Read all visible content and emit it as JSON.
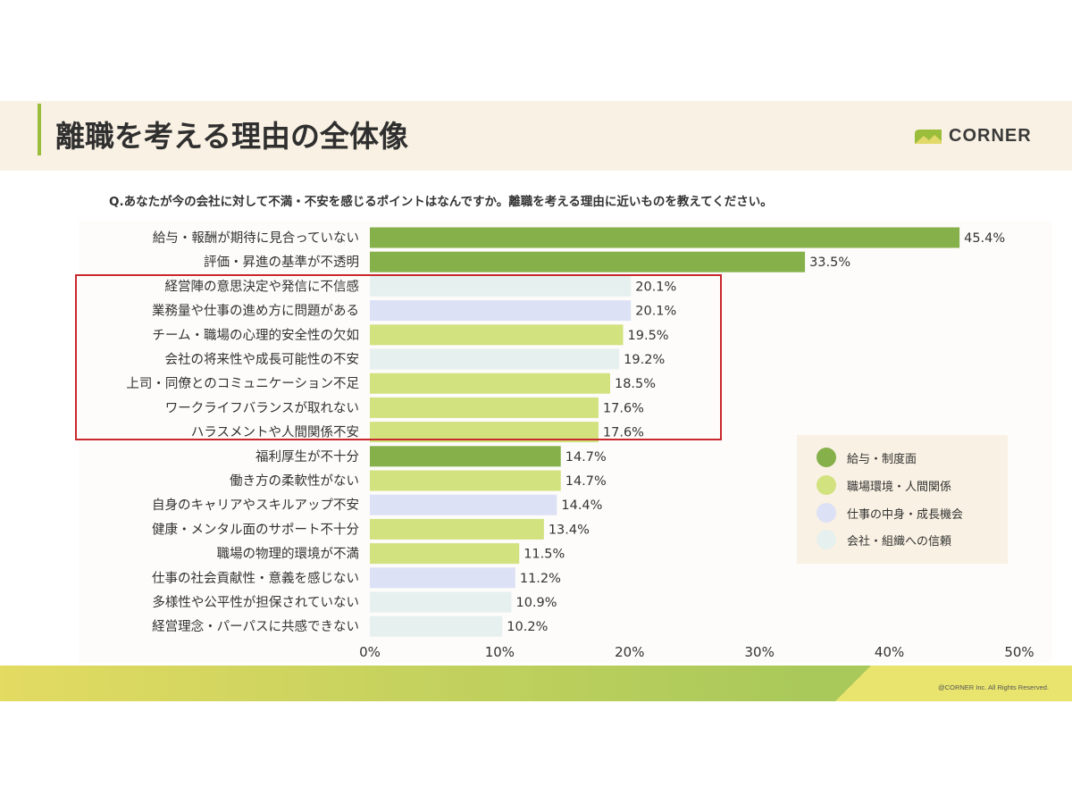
{
  "header": {
    "title": "離職を考える理由の全体像",
    "brand": "CORNER"
  },
  "question": "Q.あなたが今の会社に対して不満・不安を感じるポイントはなんですか。離職を考える理由に近いものを教えてください。",
  "legend": [
    {
      "label": "給与・制度面",
      "color": "#86b04a"
    },
    {
      "label": "職場環境・人間関係",
      "color": "#d2e27f"
    },
    {
      "label": "仕事の中身・成長機会",
      "color": "#dde1f6"
    },
    {
      "label": "会社・組織への信頼",
      "color": "#e6f0ee"
    }
  ],
  "footer": {
    "copyright": "@CORNER Inc. All Rights Reserved."
  },
  "colors": {
    "accent": "#9bbd3c",
    "highlight": "#c9282d",
    "header_bg": "#f9f1e3"
  },
  "chart_data": {
    "type": "bar",
    "orientation": "horizontal",
    "title": "離職を考える理由の全体像",
    "xlim": [
      0,
      50
    ],
    "xticks": [
      "0%",
      "10%",
      "20%",
      "30%",
      "40%",
      "50%"
    ],
    "categories": [
      "給与・報酬が期待に見合っていない",
      "評価・昇進の基準が不透明",
      "経営陣の意思決定や発信に不信感",
      "業務量や仕事の進め方に問題がある",
      "チーム・職場の心理的安全性の欠如",
      "会社の将来性や成長可能性の不安",
      "上司・同僚とのコミュニケーション不足",
      "ワークライフバランスが取れない",
      "ハラスメントや人間関係不安",
      "福利厚生が不十分",
      "働き方の柔軟性がない",
      "自身のキャリアやスキルアップ不安",
      "健康・メンタル面のサポート不十分",
      "職場の物理的環境が不満",
      "仕事の社会貢献性・意義を感じない",
      "多様性や公平性が担保されていない",
      "経営理念・パーパスに共感できない"
    ],
    "values": [
      45.4,
      33.5,
      20.1,
      20.1,
      19.5,
      19.2,
      18.5,
      17.6,
      17.6,
      14.7,
      14.7,
      14.4,
      13.4,
      11.5,
      11.2,
      10.9,
      10.2
    ],
    "value_labels": [
      "45.4%",
      "33.5%",
      "20.1%",
      "20.1%",
      "19.5%",
      "19.2%",
      "18.5%",
      "17.6%",
      "17.6%",
      "14.7%",
      "14.7%",
      "14.4%",
      "13.4%",
      "11.5%",
      "11.2%",
      "10.9%",
      "10.2%"
    ],
    "groups": [
      0,
      0,
      3,
      2,
      1,
      3,
      1,
      1,
      1,
      0,
      1,
      2,
      1,
      1,
      2,
      3,
      3
    ],
    "highlighted_range": [
      2,
      8
    ]
  }
}
